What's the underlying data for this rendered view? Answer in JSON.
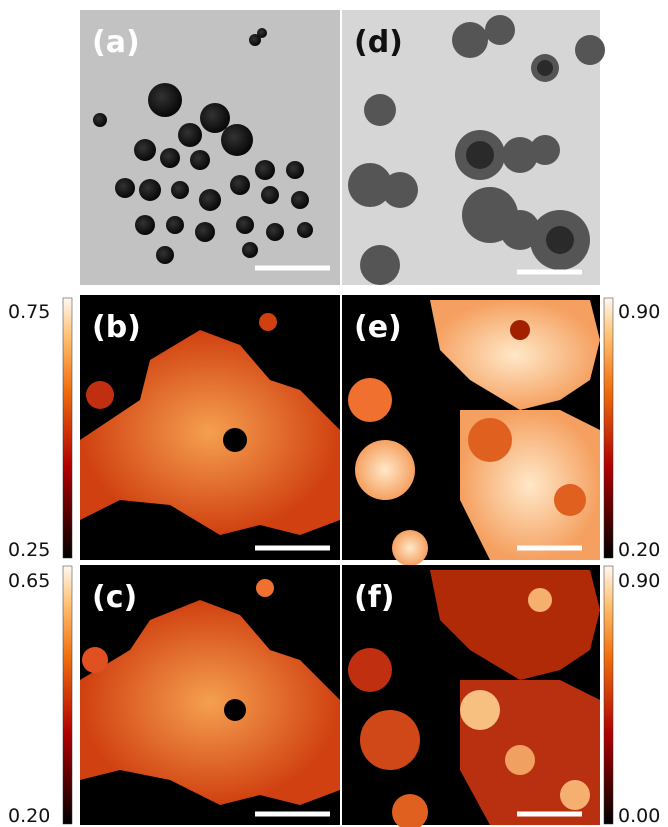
{
  "panels": [
    {
      "label": "(a)"
    },
    {
      "label": "(d)"
    },
    {
      "label": "(b)"
    },
    {
      "label": "(e)"
    },
    {
      "label": "(c)"
    },
    {
      "label": "(f)"
    }
  ],
  "colorbars": [
    {
      "max": "0.75",
      "min": "0.25"
    },
    {
      "max": "0.90",
      "min": "0.20"
    },
    {
      "max": "0.65",
      "min": "0.20"
    },
    {
      "max": "0.90",
      "min": "0.00"
    }
  ]
}
